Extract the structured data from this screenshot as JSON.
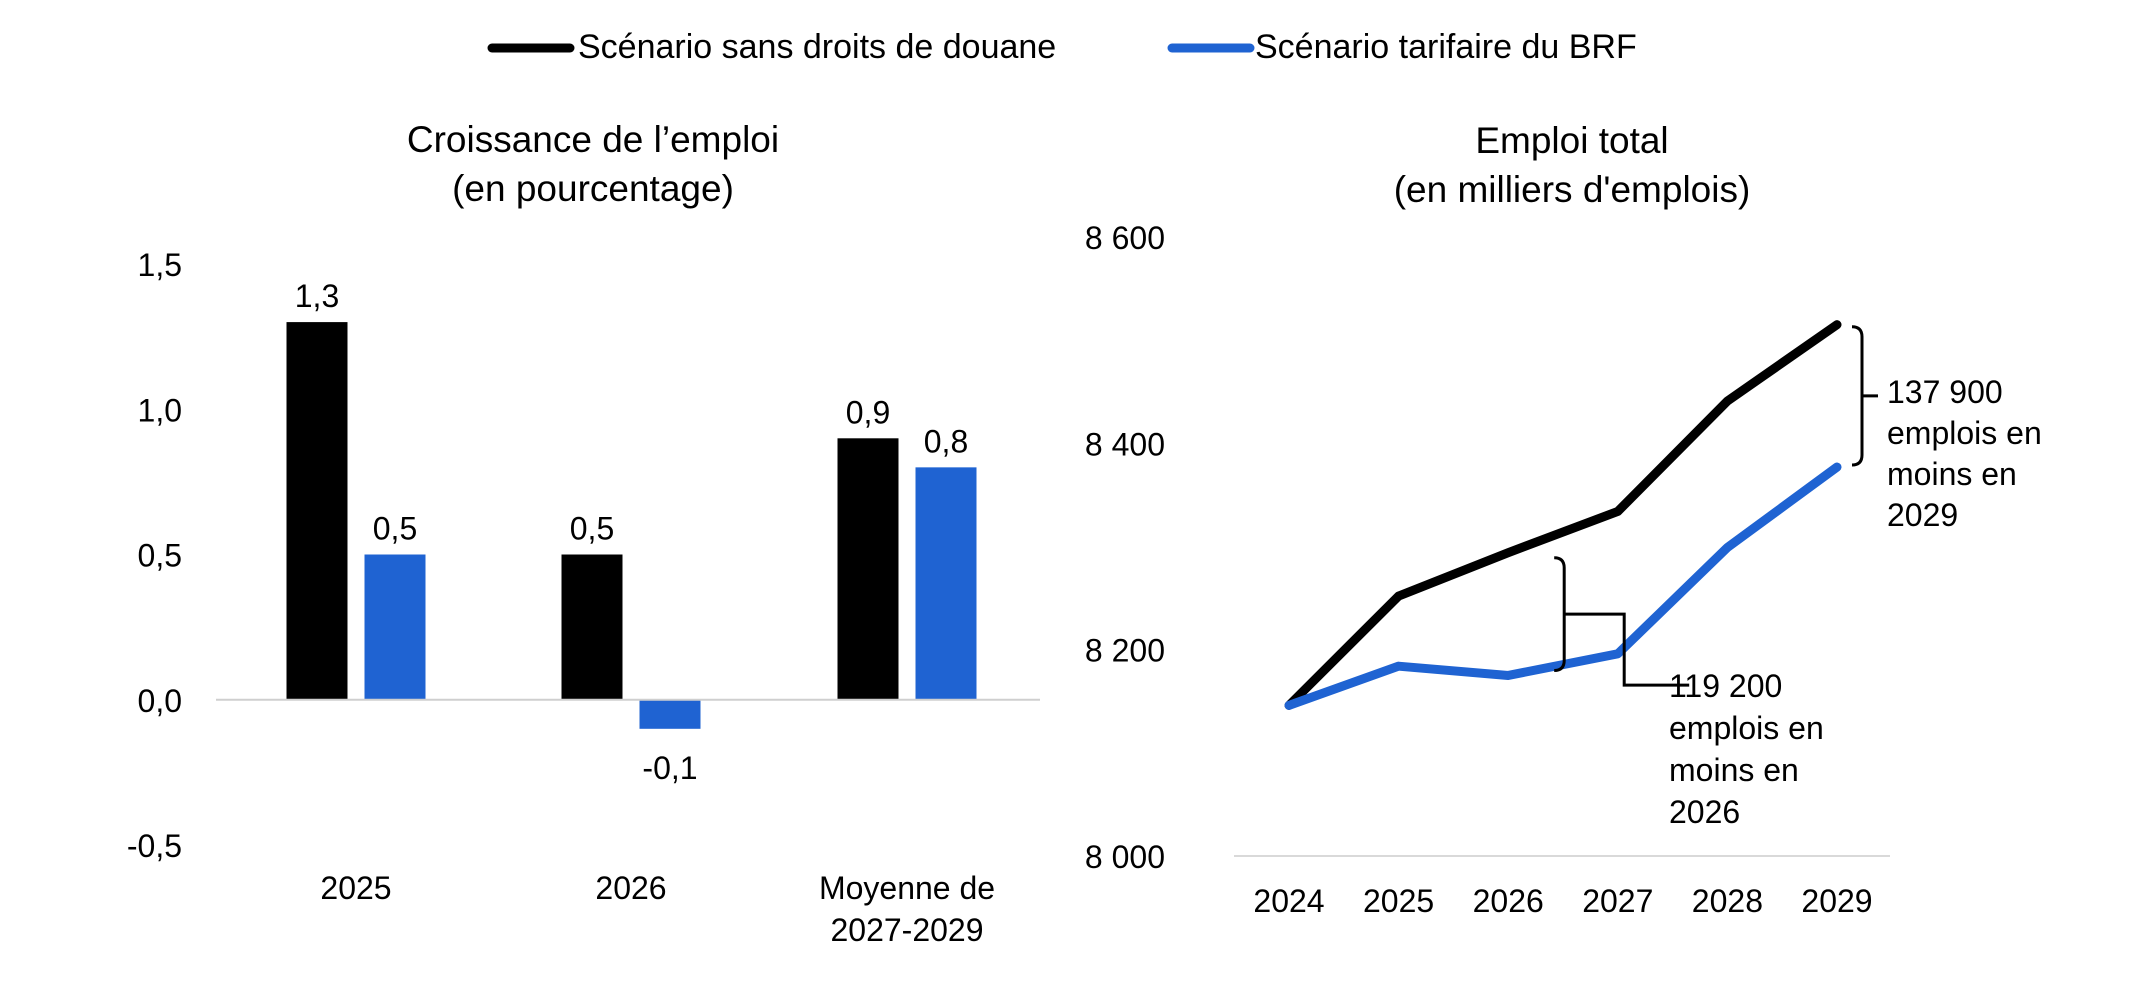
{
  "legend": {
    "items": [
      {
        "name": "Scénario sans droits de douane",
        "color": "#000000"
      },
      {
        "name": "Scénario tarifaire du BRF",
        "color": "#1f63d2"
      }
    ]
  },
  "chart_data": [
    {
      "type": "bar",
      "title": "Croissance de l’emploi",
      "subtitle": "(en pourcentage)",
      "categories": [
        "2025",
        "2026",
        "Moyenne de 2027-2029"
      ],
      "category_lines": [
        [
          "2025"
        ],
        [
          "2026"
        ],
        [
          "Moyenne de",
          "2027-2029"
        ]
      ],
      "series": [
        {
          "name": "Scénario sans droits de douane",
          "values": [
            1.3,
            0.5,
            0.9
          ],
          "labels": [
            "1,3",
            "0,5",
            "0,9"
          ],
          "color": "#000000"
        },
        {
          "name": "Scénario tarifaire du BRF",
          "values": [
            0.5,
            -0.1,
            0.8
          ],
          "labels": [
            "0,5",
            "-0,1",
            "0,8"
          ],
          "color": "#1f63d2"
        }
      ],
      "ylim": [
        -0.5,
        1.5
      ],
      "yticks": [
        -0.5,
        0.0,
        0.5,
        1.0,
        1.5
      ],
      "ytick_labels": [
        "-0,5",
        "0,0",
        "0,5",
        "1,0",
        "1,5"
      ],
      "grid": false
    },
    {
      "type": "line",
      "title": "Emploi total",
      "subtitle": "(en milliers d'emplois)",
      "x": [
        "2024",
        "2025",
        "2026",
        "2027",
        "2028",
        "2029"
      ],
      "series": [
        {
          "name": "Scénario sans droits de douane",
          "values": [
            8146,
            8252,
            8294,
            8334,
            8441,
            8515
          ],
          "color": "#000000"
        },
        {
          "name": "Scénario tarifaire du BRF",
          "values": [
            8146,
            8184,
            8175,
            8196,
            8299,
            8377
          ],
          "color": "#1f63d2"
        }
      ],
      "ylim": [
        8000,
        8600
      ],
      "yticks": [
        8000,
        8200,
        8400,
        8600
      ],
      "ytick_labels": [
        "8 000",
        "8 200",
        "8 400",
        "8 600"
      ],
      "annotations": [
        {
          "year": "2026",
          "lines": [
            "119 200",
            "emplois en",
            "moins en",
            "2026"
          ]
        },
        {
          "year": "2029",
          "lines": [
            "137 900",
            "emplois en",
            "moins en",
            "2029"
          ]
        }
      ],
      "grid": false
    }
  ]
}
